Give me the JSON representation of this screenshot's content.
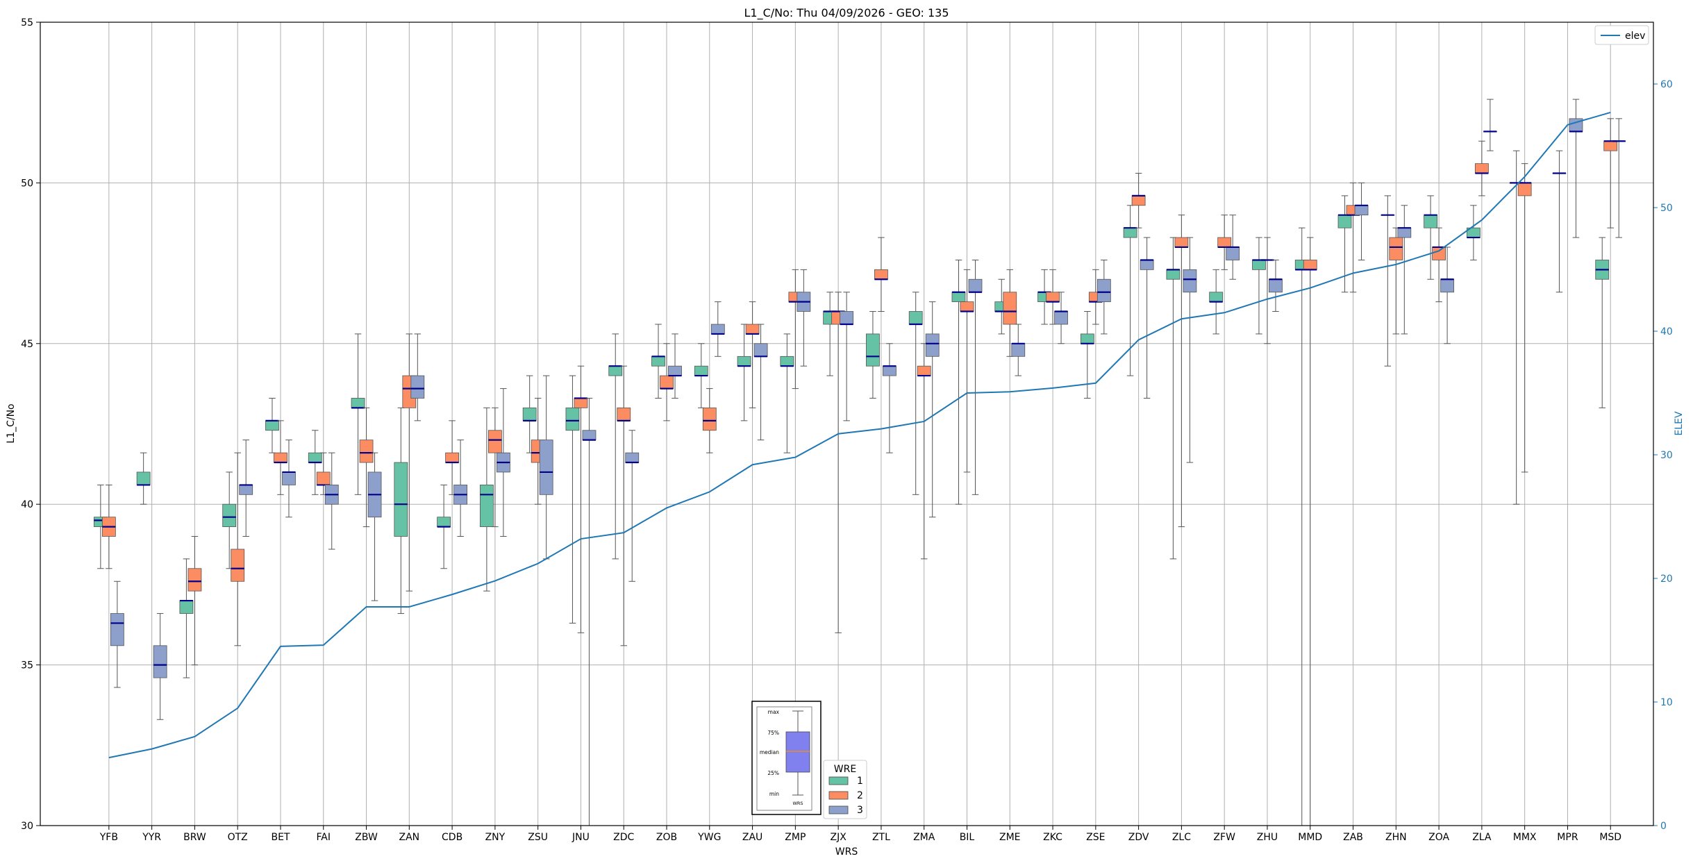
{
  "chart_data": {
    "type": "box",
    "title": "L1_C/No: Thu 04/09/2026 - GEO: 135",
    "xlabel": "WRS",
    "ylabel": "L1_C/No",
    "y2label": "ELEV",
    "ylim": [
      30,
      55
    ],
    "y2lim": [
      0,
      65
    ],
    "yticks": [
      30,
      35,
      40,
      45,
      50,
      55
    ],
    "y2ticks": [
      0,
      10,
      20,
      30,
      40,
      50,
      60
    ],
    "grid": true,
    "colors": {
      "wre1": "#66c2a5",
      "wre2": "#fc8d62",
      "wre3": "#8da0cb",
      "elev": "#1f77b4",
      "median": "#00008b"
    },
    "categories": [
      "YFB",
      "YYR",
      "BRW",
      "OTZ",
      "BET",
      "FAI",
      "ZBW",
      "ZAN",
      "CDB",
      "ZNY",
      "ZSU",
      "JNU",
      "ZDC",
      "ZOB",
      "YWG",
      "ZAU",
      "ZMP",
      "ZJX",
      "ZTL",
      "ZMA",
      "BIL",
      "ZME",
      "ZKC",
      "ZSE",
      "ZDV",
      "ZLC",
      "ZFW",
      "ZHU",
      "MMD",
      "ZAB",
      "ZHN",
      "ZOA",
      "ZLA",
      "MMX",
      "MPR",
      "MSD"
    ],
    "boxes": [
      {
        "station": "YFB",
        "wre": "1",
        "min": 38.0,
        "q1": 39.3,
        "median": 39.5,
        "q3": 39.6,
        "max": 40.6
      },
      {
        "station": "YFB",
        "wre": "2",
        "min": 38.0,
        "q1": 39.0,
        "median": 39.3,
        "q3": 39.6,
        "max": 40.6
      },
      {
        "station": "YFB",
        "wre": "3",
        "min": 34.3,
        "q1": 35.6,
        "median": 36.3,
        "q3": 36.6,
        "max": 37.6
      },
      {
        "station": "YYR",
        "wre": "1",
        "min": 40.0,
        "q1": 40.6,
        "median": 40.6,
        "q3": 41.0,
        "max": 41.6
      },
      {
        "station": "YYR",
        "wre": "3",
        "min": 33.3,
        "q1": 34.6,
        "median": 35.0,
        "q3": 35.6,
        "max": 36.6
      },
      {
        "station": "BRW",
        "wre": "1",
        "min": 34.6,
        "q1": 36.6,
        "median": 37.0,
        "q3": 37.0,
        "max": 38.3
      },
      {
        "station": "BRW",
        "wre": "2",
        "min": 35.0,
        "q1": 37.3,
        "median": 37.6,
        "q3": 38.0,
        "max": 39.0
      },
      {
        "station": "OTZ",
        "wre": "1",
        "min": 38.0,
        "q1": 39.3,
        "median": 39.6,
        "q3": 40.0,
        "max": 41.0
      },
      {
        "station": "OTZ",
        "wre": "2",
        "min": 35.6,
        "q1": 37.6,
        "median": 38.0,
        "q3": 38.6,
        "max": 41.6
      },
      {
        "station": "OTZ",
        "wre": "3",
        "min": 39.0,
        "q1": 40.3,
        "median": 40.6,
        "q3": 40.6,
        "max": 42.0
      },
      {
        "station": "BET",
        "wre": "1",
        "min": 41.6,
        "q1": 42.3,
        "median": 42.6,
        "q3": 42.6,
        "max": 43.3
      },
      {
        "station": "BET",
        "wre": "2",
        "min": 40.3,
        "q1": 41.3,
        "median": 41.3,
        "q3": 41.6,
        "max": 42.6
      },
      {
        "station": "BET",
        "wre": "3",
        "min": 39.6,
        "q1": 40.6,
        "median": 41.0,
        "q3": 41.0,
        "max": 42.0
      },
      {
        "station": "FAI",
        "wre": "1",
        "min": 40.3,
        "q1": 41.3,
        "median": 41.3,
        "q3": 41.6,
        "max": 42.3
      },
      {
        "station": "FAI",
        "wre": "2",
        "min": 40.3,
        "q1": 40.6,
        "median": 40.6,
        "q3": 41.0,
        "max": 41.6
      },
      {
        "station": "FAI",
        "wre": "3",
        "min": 38.6,
        "q1": 40.0,
        "median": 40.3,
        "q3": 40.6,
        "max": 41.6
      },
      {
        "station": "ZBW",
        "wre": "1",
        "min": 40.3,
        "q1": 43.0,
        "median": 43.0,
        "q3": 43.3,
        "max": 45.3
      },
      {
        "station": "ZBW",
        "wre": "2",
        "min": 39.3,
        "q1": 41.3,
        "median": 41.6,
        "q3": 42.0,
        "max": 43.0
      },
      {
        "station": "ZBW",
        "wre": "3",
        "min": 37.0,
        "q1": 39.6,
        "median": 40.3,
        "q3": 41.0,
        "max": 41.6
      },
      {
        "station": "ZAN",
        "wre": "1",
        "min": 36.6,
        "q1": 39.0,
        "median": 40.0,
        "q3": 41.3,
        "max": 43.0
      },
      {
        "station": "ZAN",
        "wre": "2",
        "min": 37.3,
        "q1": 43.0,
        "median": 43.6,
        "q3": 44.0,
        "max": 45.3
      },
      {
        "station": "ZAN",
        "wre": "3",
        "min": 42.6,
        "q1": 43.3,
        "median": 43.6,
        "q3": 44.0,
        "max": 45.3
      },
      {
        "station": "CDB",
        "wre": "1",
        "min": 38.0,
        "q1": 39.3,
        "median": 39.3,
        "q3": 39.6,
        "max": 40.6
      },
      {
        "station": "CDB",
        "wre": "2",
        "min": 40.3,
        "q1": 41.3,
        "median": 41.3,
        "q3": 41.6,
        "max": 42.6
      },
      {
        "station": "CDB",
        "wre": "3",
        "min": 39.0,
        "q1": 40.0,
        "median": 40.3,
        "q3": 40.6,
        "max": 42.0
      },
      {
        "station": "ZNY",
        "wre": "1",
        "min": 37.3,
        "q1": 39.3,
        "median": 40.3,
        "q3": 40.6,
        "max": 43.0
      },
      {
        "station": "ZNY",
        "wre": "2",
        "min": 39.3,
        "q1": 41.6,
        "median": 42.0,
        "q3": 42.3,
        "max": 43.0
      },
      {
        "station": "ZNY",
        "wre": "3",
        "min": 39.0,
        "q1": 41.0,
        "median": 41.3,
        "q3": 41.6,
        "max": 43.6
      },
      {
        "station": "ZSU",
        "wre": "1",
        "min": 41.6,
        "q1": 42.6,
        "median": 42.6,
        "q3": 43.0,
        "max": 44.0
      },
      {
        "station": "ZSU",
        "wre": "2",
        "min": 40.0,
        "q1": 41.3,
        "median": 41.6,
        "q3": 42.0,
        "max": 43.3
      },
      {
        "station": "ZSU",
        "wre": "3",
        "min": 38.3,
        "q1": 40.3,
        "median": 41.0,
        "q3": 42.0,
        "max": 44.0
      },
      {
        "station": "JNU",
        "wre": "1",
        "min": 36.3,
        "q1": 42.3,
        "median": 42.6,
        "q3": 43.0,
        "max": 44.0
      },
      {
        "station": "JNU",
        "wre": "2",
        "min": 36.0,
        "q1": 43.0,
        "median": 43.3,
        "q3": 43.3,
        "max": 44.3
      },
      {
        "station": "JNU",
        "wre": "3",
        "min": 30.0,
        "q1": 42.0,
        "median": 42.0,
        "q3": 42.3,
        "max": 43.3
      },
      {
        "station": "ZDC",
        "wre": "1",
        "min": 38.3,
        "q1": 44.0,
        "median": 44.3,
        "q3": 44.3,
        "max": 45.3
      },
      {
        "station": "ZDC",
        "wre": "2",
        "min": 35.6,
        "q1": 42.6,
        "median": 42.6,
        "q3": 43.0,
        "max": 44.3
      },
      {
        "station": "ZDC",
        "wre": "3",
        "min": 37.6,
        "q1": 41.3,
        "median": 41.3,
        "q3": 41.6,
        "max": 42.3
      },
      {
        "station": "ZOB",
        "wre": "1",
        "min": 43.3,
        "q1": 44.3,
        "median": 44.6,
        "q3": 44.6,
        "max": 45.6
      },
      {
        "station": "ZOB",
        "wre": "2",
        "min": 42.6,
        "q1": 43.6,
        "median": 43.6,
        "q3": 44.0,
        "max": 45.0
      },
      {
        "station": "ZOB",
        "wre": "3",
        "min": 43.3,
        "q1": 44.0,
        "median": 44.0,
        "q3": 44.3,
        "max": 45.3
      },
      {
        "station": "YWG",
        "wre": "1",
        "min": 43.0,
        "q1": 44.0,
        "median": 44.0,
        "q3": 44.3,
        "max": 45.0
      },
      {
        "station": "YWG",
        "wre": "2",
        "min": 41.6,
        "q1": 42.3,
        "median": 42.6,
        "q3": 43.0,
        "max": 43.6
      },
      {
        "station": "YWG",
        "wre": "3",
        "min": 44.6,
        "q1": 45.3,
        "median": 45.3,
        "q3": 45.6,
        "max": 46.3
      },
      {
        "station": "ZAU",
        "wre": "1",
        "min": 42.6,
        "q1": 44.3,
        "median": 44.3,
        "q3": 44.6,
        "max": 45.6
      },
      {
        "station": "ZAU",
        "wre": "2",
        "min": 43.0,
        "q1": 45.3,
        "median": 45.3,
        "q3": 45.6,
        "max": 46.3
      },
      {
        "station": "ZAU",
        "wre": "3",
        "min": 42.0,
        "q1": 44.6,
        "median": 44.6,
        "q3": 45.0,
        "max": 45.6
      },
      {
        "station": "ZMP",
        "wre": "1",
        "min": 41.6,
        "q1": 44.3,
        "median": 44.3,
        "q3": 44.6,
        "max": 45.3
      },
      {
        "station": "ZMP",
        "wre": "2",
        "min": 43.6,
        "q1": 46.3,
        "median": 46.3,
        "q3": 46.6,
        "max": 47.3
      },
      {
        "station": "ZMP",
        "wre": "3",
        "min": 44.3,
        "q1": 46.0,
        "median": 46.3,
        "q3": 46.6,
        "max": 47.3
      },
      {
        "station": "ZJX",
        "wre": "1",
        "min": 44.0,
        "q1": 45.6,
        "median": 46.0,
        "q3": 46.0,
        "max": 46.6
      },
      {
        "station": "ZJX",
        "wre": "2",
        "min": 36.0,
        "q1": 45.6,
        "median": 46.0,
        "q3": 46.0,
        "max": 46.6
      },
      {
        "station": "ZJX",
        "wre": "3",
        "min": 42.6,
        "q1": 45.6,
        "median": 45.6,
        "q3": 46.0,
        "max": 46.6
      },
      {
        "station": "ZTL",
        "wre": "1",
        "min": 43.3,
        "q1": 44.3,
        "median": 44.6,
        "q3": 45.3,
        "max": 46.0
      },
      {
        "station": "ZTL",
        "wre": "2",
        "min": 46.0,
        "q1": 47.0,
        "median": 47.0,
        "q3": 47.3,
        "max": 48.3
      },
      {
        "station": "ZTL",
        "wre": "3",
        "min": 41.6,
        "q1": 44.0,
        "median": 44.3,
        "q3": 44.3,
        "max": 45.0
      },
      {
        "station": "ZMA",
        "wre": "1",
        "min": 40.3,
        "q1": 45.6,
        "median": 45.6,
        "q3": 46.0,
        "max": 46.6
      },
      {
        "station": "ZMA",
        "wre": "2",
        "min": 38.3,
        "q1": 44.0,
        "median": 44.0,
        "q3": 44.3,
        "max": 45.0
      },
      {
        "station": "ZMA",
        "wre": "3",
        "min": 39.6,
        "q1": 44.6,
        "median": 45.0,
        "q3": 45.3,
        "max": 46.3
      },
      {
        "station": "BIL",
        "wre": "1",
        "min": 40.0,
        "q1": 46.3,
        "median": 46.6,
        "q3": 46.6,
        "max": 47.6
      },
      {
        "station": "BIL",
        "wre": "2",
        "min": 41.0,
        "q1": 46.0,
        "median": 46.0,
        "q3": 46.3,
        "max": 47.3
      },
      {
        "station": "BIL",
        "wre": "3",
        "min": 40.3,
        "q1": 46.6,
        "median": 46.6,
        "q3": 47.0,
        "max": 47.6
      },
      {
        "station": "ZME",
        "wre": "1",
        "min": 45.3,
        "q1": 46.0,
        "median": 46.0,
        "q3": 46.3,
        "max": 47.0
      },
      {
        "station": "ZME",
        "wre": "2",
        "min": 44.6,
        "q1": 45.6,
        "median": 46.0,
        "q3": 46.6,
        "max": 47.3
      },
      {
        "station": "ZME",
        "wre": "3",
        "min": 44.0,
        "q1": 44.6,
        "median": 45.0,
        "q3": 45.0,
        "max": 45.6
      },
      {
        "station": "ZKC",
        "wre": "1",
        "min": 45.6,
        "q1": 46.3,
        "median": 46.6,
        "q3": 46.6,
        "max": 47.3
      },
      {
        "station": "ZKC",
        "wre": "2",
        "min": 45.6,
        "q1": 46.3,
        "median": 46.3,
        "q3": 46.6,
        "max": 47.3
      },
      {
        "station": "ZKC",
        "wre": "3",
        "min": 45.0,
        "q1": 45.6,
        "median": 46.0,
        "q3": 46.0,
        "max": 46.6
      },
      {
        "station": "ZSE",
        "wre": "1",
        "min": 43.3,
        "q1": 45.0,
        "median": 45.0,
        "q3": 45.3,
        "max": 46.0
      },
      {
        "station": "ZSE",
        "wre": "2",
        "min": 45.6,
        "q1": 46.3,
        "median": 46.3,
        "q3": 46.6,
        "max": 47.3
      },
      {
        "station": "ZSE",
        "wre": "3",
        "min": 45.3,
        "q1": 46.3,
        "median": 46.6,
        "q3": 47.0,
        "max": 47.6
      },
      {
        "station": "ZDV",
        "wre": "1",
        "min": 44.0,
        "q1": 48.3,
        "median": 48.6,
        "q3": 48.6,
        "max": 49.3
      },
      {
        "station": "ZDV",
        "wre": "2",
        "min": 48.6,
        "q1": 49.3,
        "median": 49.6,
        "q3": 49.6,
        "max": 50.3
      },
      {
        "station": "ZDV",
        "wre": "3",
        "min": 43.3,
        "q1": 47.3,
        "median": 47.6,
        "q3": 47.6,
        "max": 48.3
      },
      {
        "station": "ZLC",
        "wre": "1",
        "min": 38.3,
        "q1": 47.0,
        "median": 47.3,
        "q3": 47.3,
        "max": 48.3
      },
      {
        "station": "ZLC",
        "wre": "2",
        "min": 39.3,
        "q1": 48.0,
        "median": 48.0,
        "q3": 48.3,
        "max": 49.0
      },
      {
        "station": "ZLC",
        "wre": "3",
        "min": 41.3,
        "q1": 46.6,
        "median": 47.0,
        "q3": 47.3,
        "max": 48.3
      },
      {
        "station": "ZFW",
        "wre": "1",
        "min": 45.3,
        "q1": 46.3,
        "median": 46.3,
        "q3": 46.6,
        "max": 47.3
      },
      {
        "station": "ZFW",
        "wre": "2",
        "min": 47.3,
        "q1": 48.0,
        "median": 48.0,
        "q3": 48.3,
        "max": 49.0
      },
      {
        "station": "ZFW",
        "wre": "3",
        "min": 47.0,
        "q1": 47.6,
        "median": 48.0,
        "q3": 48.0,
        "max": 49.0
      },
      {
        "station": "ZHU",
        "wre": "1",
        "min": 45.3,
        "q1": 47.3,
        "median": 47.6,
        "q3": 47.6,
        "max": 48.3
      },
      {
        "station": "ZHU",
        "wre": "2",
        "min": 45.0,
        "q1": 47.6,
        "median": 47.6,
        "q3": 47.6,
        "max": 48.3
      },
      {
        "station": "ZHU",
        "wre": "3",
        "min": 46.0,
        "q1": 46.6,
        "median": 47.0,
        "q3": 47.0,
        "max": 47.6
      },
      {
        "station": "MMD",
        "wre": "1",
        "min": 30.0,
        "q1": 47.3,
        "median": 47.3,
        "q3": 47.6,
        "max": 48.6
      },
      {
        "station": "MMD",
        "wre": "2",
        "min": 30.0,
        "q1": 47.3,
        "median": 47.3,
        "q3": 47.6,
        "max": 48.3
      },
      {
        "station": "ZAB",
        "wre": "1",
        "min": 46.6,
        "q1": 48.6,
        "median": 49.0,
        "q3": 49.0,
        "max": 49.6
      },
      {
        "station": "ZAB",
        "wre": "2",
        "min": 46.6,
        "q1": 49.0,
        "median": 49.0,
        "q3": 49.3,
        "max": 50.0
      },
      {
        "station": "ZAB",
        "wre": "3",
        "min": 47.6,
        "q1": 49.0,
        "median": 49.3,
        "q3": 49.3,
        "max": 50.0
      },
      {
        "station": "ZHN",
        "wre": "1",
        "min": 44.3,
        "q1": 49.0,
        "median": 49.0,
        "q3": 49.0,
        "max": 49.6
      },
      {
        "station": "ZHN",
        "wre": "2",
        "min": 45.3,
        "q1": 47.6,
        "median": 48.0,
        "q3": 48.3,
        "max": 48.6
      },
      {
        "station": "ZHN",
        "wre": "3",
        "min": 45.3,
        "q1": 48.3,
        "median": 48.6,
        "q3": 48.6,
        "max": 49.3
      },
      {
        "station": "ZOA",
        "wre": "1",
        "min": 47.0,
        "q1": 48.6,
        "median": 49.0,
        "q3": 49.0,
        "max": 49.6
      },
      {
        "station": "ZOA",
        "wre": "2",
        "min": 46.3,
        "q1": 47.6,
        "median": 48.0,
        "q3": 48.0,
        "max": 48.6
      },
      {
        "station": "ZOA",
        "wre": "3",
        "min": 45.0,
        "q1": 46.6,
        "median": 47.0,
        "q3": 47.0,
        "max": 48.0
      },
      {
        "station": "ZLA",
        "wre": "1",
        "min": 47.6,
        "q1": 48.3,
        "median": 48.3,
        "q3": 48.6,
        "max": 49.3
      },
      {
        "station": "ZLA",
        "wre": "2",
        "min": 49.6,
        "q1": 50.3,
        "median": 50.3,
        "q3": 50.6,
        "max": 51.3
      },
      {
        "station": "ZLA",
        "wre": "3",
        "min": 51.0,
        "q1": 51.6,
        "median": 51.6,
        "q3": 51.6,
        "max": 52.6
      },
      {
        "station": "MMX",
        "wre": "1",
        "min": 40.0,
        "q1": 50.0,
        "median": 50.0,
        "q3": 50.0,
        "max": 51.0
      },
      {
        "station": "MMX",
        "wre": "2",
        "min": 41.0,
        "q1": 49.6,
        "median": 50.0,
        "q3": 50.0,
        "max": 50.6
      },
      {
        "station": "MPR",
        "wre": "1",
        "min": 46.6,
        "q1": 50.3,
        "median": 50.3,
        "q3": 50.3,
        "max": 51.0
      },
      {
        "station": "MPR",
        "wre": "3",
        "min": 48.3,
        "q1": 51.6,
        "median": 51.6,
        "q3": 52.0,
        "max": 52.6
      },
      {
        "station": "MSD",
        "wre": "1",
        "min": 43.0,
        "q1": 47.0,
        "median": 47.3,
        "q3": 47.6,
        "max": 48.3
      },
      {
        "station": "MSD",
        "wre": "2",
        "min": 48.6,
        "q1": 51.0,
        "median": 51.3,
        "q3": 51.3,
        "max": 52.0
      },
      {
        "station": "MSD",
        "wre": "3",
        "min": 48.3,
        "q1": 51.3,
        "median": 51.3,
        "q3": 51.3,
        "max": 52.0
      }
    ],
    "elev_series": {
      "name": "elev",
      "values": [
        5.5,
        6.2,
        7.2,
        9.5,
        14.5,
        14.6,
        17.7,
        17.7,
        18.7,
        19.8,
        21.2,
        23.2,
        23.7,
        25.7,
        27.0,
        29.2,
        29.8,
        31.7,
        32.1,
        32.7,
        35.0,
        35.1,
        35.4,
        35.8,
        39.3,
        41.0,
        41.5,
        42.6,
        43.5,
        44.7,
        45.4,
        46.5,
        49.0,
        52.5,
        56.7,
        57.7
      ]
    },
    "legend_elev": {
      "label": "elev",
      "position": "top-right"
    },
    "legend_wre": {
      "title": "WRE",
      "entries": [
        "1",
        "2",
        "3"
      ],
      "position": "bottom-center"
    },
    "inset_key": {
      "labels": [
        "max",
        "75%",
        "median",
        "25%",
        "min"
      ],
      "caption": "WRS"
    }
  }
}
